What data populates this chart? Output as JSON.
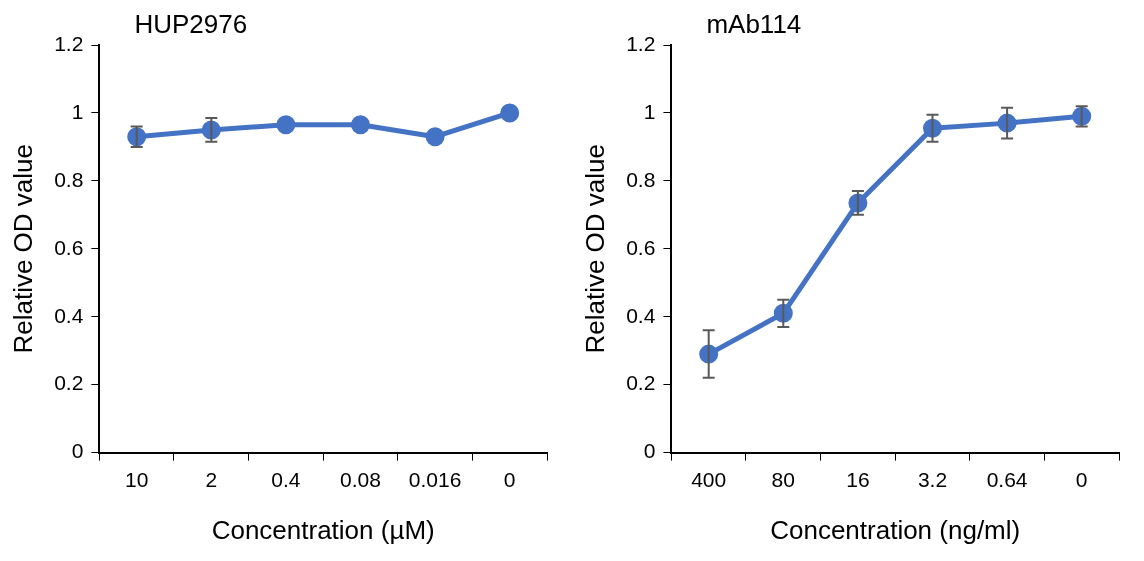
{
  "chart_data": [
    {
      "type": "line",
      "title": "HUP2976",
      "xlabel": "Concentration (µM)",
      "ylabel": "Relative OD value",
      "categories": [
        "10",
        "2",
        "0.4",
        "0.08",
        "0.016",
        "0"
      ],
      "series": [
        {
          "color": "#4472c4",
          "values": [
            0.93,
            0.95,
            0.965,
            0.965,
            0.93,
            1.0
          ],
          "errors": [
            0.03,
            0.035,
            null,
            null,
            null,
            null
          ]
        }
      ],
      "ylim": [
        0,
        1.2
      ],
      "yticks": [
        0,
        0.2,
        0.4,
        0.6,
        0.8,
        1,
        1.2
      ],
      "grid": false,
      "legend": false,
      "marker": "circle",
      "line_style": "solid"
    },
    {
      "type": "line",
      "title": "mAb114",
      "xlabel": "Concentration (ng/ml)",
      "ylabel": "Relative OD value",
      "categories": [
        "400",
        "80",
        "16",
        "3.2",
        "0.64",
        "0"
      ],
      "series": [
        {
          "color": "#4472c4",
          "values": [
            0.29,
            0.41,
            0.735,
            0.955,
            0.97,
            0.99
          ],
          "errors": [
            0.07,
            0.04,
            0.035,
            0.04,
            0.045,
            0.03
          ]
        }
      ],
      "ylim": [
        0,
        1.2
      ],
      "yticks": [
        0,
        0.2,
        0.4,
        0.6,
        0.8,
        1,
        1.2
      ],
      "grid": false,
      "legend": false,
      "marker": "circle",
      "line_style": "solid"
    }
  ]
}
